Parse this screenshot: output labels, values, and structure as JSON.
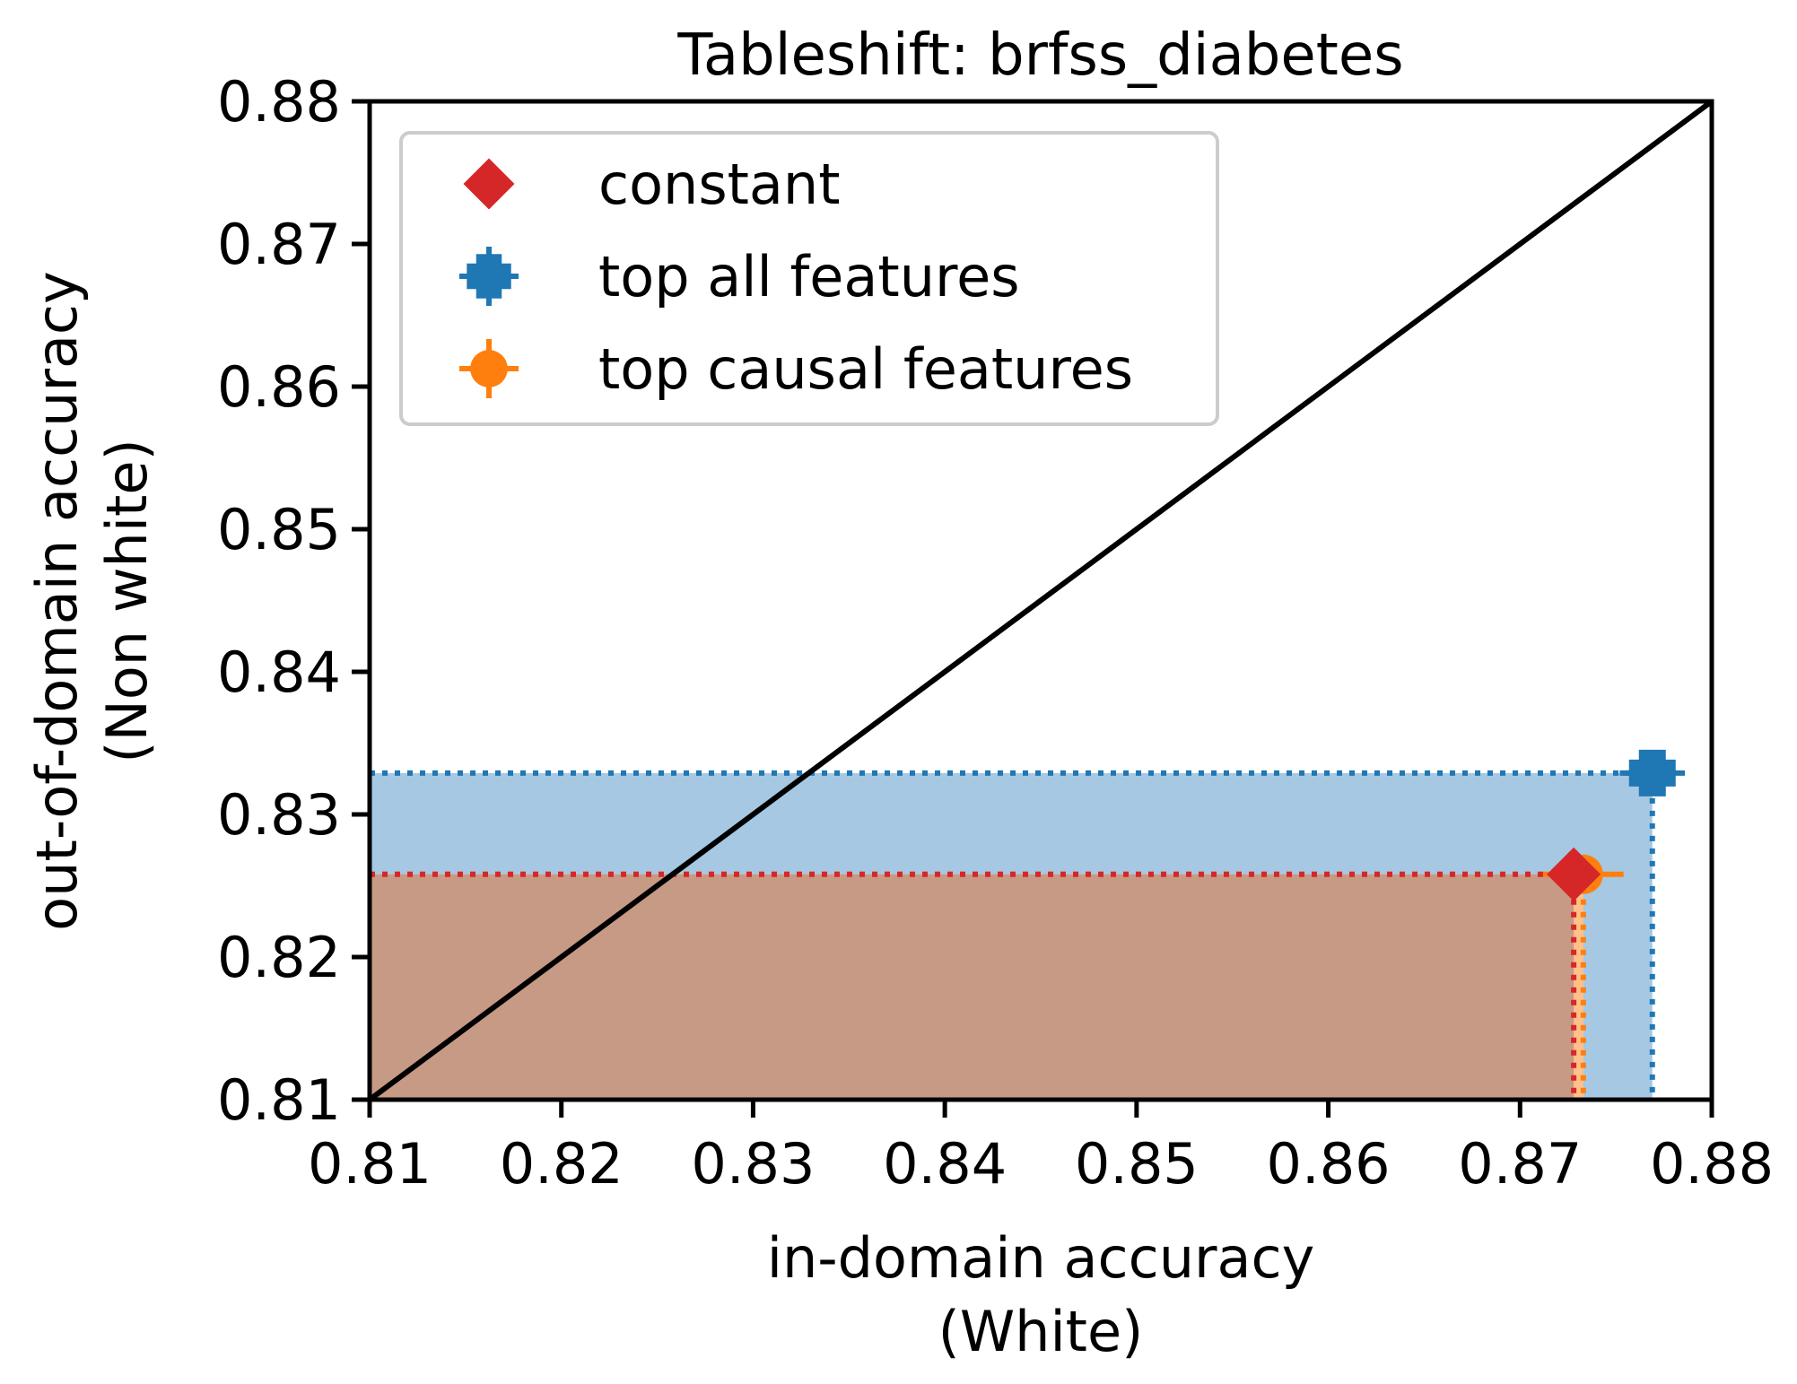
{
  "chart_data": {
    "type": "scatter",
    "title": "Tableshift: brfss_diabetes",
    "xlabel": [
      "in-domain accuracy",
      "(White)"
    ],
    "ylabel": [
      "out-of-domain accuracy",
      "(Non white)"
    ],
    "xlim": [
      0.81,
      0.88
    ],
    "ylim": [
      0.81,
      0.88
    ],
    "xticks": [
      "0.81",
      "0.82",
      "0.83",
      "0.84",
      "0.85",
      "0.86",
      "0.87",
      "0.88"
    ],
    "yticks": [
      "0.81",
      "0.82",
      "0.83",
      "0.84",
      "0.85",
      "0.86",
      "0.87",
      "0.88"
    ],
    "diagonal": true,
    "legend_position": "top-left",
    "series": [
      {
        "name": "constant",
        "marker": "diamond",
        "color": "#d62728",
        "x": 0.8728,
        "y": 0.8258,
        "xerr": 0.0,
        "yerr": 0.0
      },
      {
        "name": "top all features",
        "marker": "plus",
        "color": "#1f77b4",
        "x": 0.8769,
        "y": 0.8329,
        "xerr": 0.0017,
        "yerr": 0.0003
      },
      {
        "name": "top causal features",
        "marker": "circle",
        "color": "#ff7f0e",
        "x": 0.8733,
        "y": 0.8258,
        "xerr": 0.0021,
        "yerr": 0.0003
      }
    ],
    "regions": [
      {
        "series": "top all features",
        "fill": "#a6c8e2"
      },
      {
        "series": "top causal features",
        "fill": "#ffc08a"
      },
      {
        "series": "constant",
        "fill": "#c79a86"
      }
    ]
  }
}
